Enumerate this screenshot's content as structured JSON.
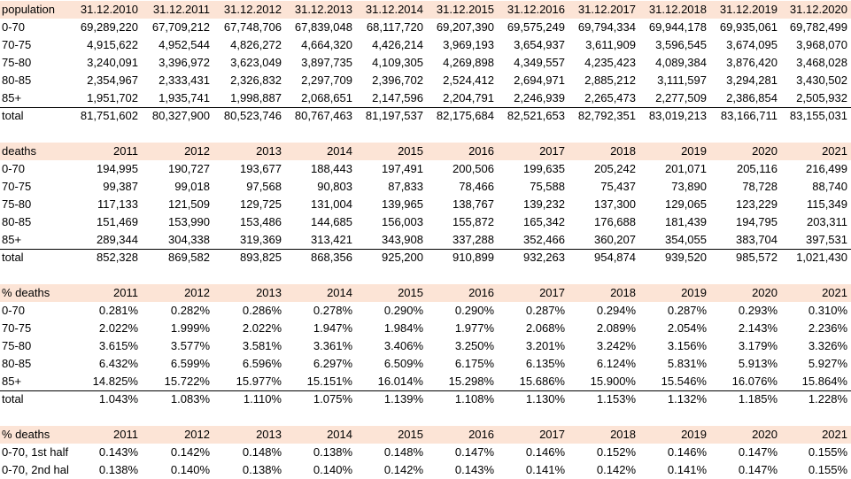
{
  "sections": [
    {
      "header": [
        "population",
        "31.12.2010",
        "31.12.2011",
        "31.12.2012",
        "31.12.2013",
        "31.12.2014",
        "31.12.2015",
        "31.12.2016",
        "31.12.2017",
        "31.12.2018",
        "31.12.2019",
        "31.12.2020"
      ],
      "rows": [
        [
          "0-70",
          "69,289,220",
          "67,709,212",
          "67,748,706",
          "67,839,048",
          "68,117,720",
          "69,207,390",
          "69,575,249",
          "69,794,334",
          "69,944,178",
          "69,935,061",
          "69,782,499"
        ],
        [
          "70-75",
          "4,915,622",
          "4,952,544",
          "4,826,272",
          "4,664,320",
          "4,426,214",
          "3,969,193",
          "3,654,937",
          "3,611,909",
          "3,596,545",
          "3,674,095",
          "3,968,070"
        ],
        [
          "75-80",
          "3,240,091",
          "3,396,972",
          "3,623,049",
          "3,897,735",
          "4,109,305",
          "4,269,898",
          "4,349,557",
          "4,235,423",
          "4,089,384",
          "3,876,420",
          "3,468,028"
        ],
        [
          "80-85",
          "2,354,967",
          "2,333,431",
          "2,326,832",
          "2,297,709",
          "2,396,702",
          "2,524,412",
          "2,694,971",
          "2,885,212",
          "3,111,597",
          "3,294,281",
          "3,430,502"
        ],
        [
          "85+",
          "1,951,702",
          "1,935,741",
          "1,998,887",
          "2,068,651",
          "2,147,596",
          "2,204,791",
          "2,246,939",
          "2,265,473",
          "2,277,509",
          "2,386,854",
          "2,505,932"
        ]
      ],
      "total": [
        "total",
        "81,751,602",
        "80,327,900",
        "80,523,746",
        "80,767,463",
        "81,197,537",
        "82,175,684",
        "82,521,653",
        "82,792,351",
        "83,019,213",
        "83,166,711",
        "83,155,031"
      ]
    },
    {
      "header": [
        "deaths",
        "2011",
        "2012",
        "2013",
        "2014",
        "2015",
        "2016",
        "2017",
        "2018",
        "2019",
        "2020",
        "2021"
      ],
      "rows": [
        [
          "0-70",
          "194,995",
          "190,727",
          "193,677",
          "188,443",
          "197,491",
          "200,506",
          "199,635",
          "205,242",
          "201,071",
          "205,116",
          "216,499"
        ],
        [
          "70-75",
          "99,387",
          "99,018",
          "97,568",
          "90,803",
          "87,833",
          "78,466",
          "75,588",
          "75,437",
          "73,890",
          "78,728",
          "88,740"
        ],
        [
          "75-80",
          "117,133",
          "121,509",
          "129,725",
          "131,004",
          "139,965",
          "138,767",
          "139,232",
          "137,300",
          "129,065",
          "123,229",
          "115,349"
        ],
        [
          "80-85",
          "151,469",
          "153,990",
          "153,486",
          "144,685",
          "156,003",
          "155,872",
          "165,342",
          "176,688",
          "181,439",
          "194,795",
          "203,311"
        ],
        [
          "85+",
          "289,344",
          "304,338",
          "319,369",
          "313,421",
          "343,908",
          "337,288",
          "352,466",
          "360,207",
          "354,055",
          "383,704",
          "397,531"
        ]
      ],
      "total": [
        "total",
        "852,328",
        "869,582",
        "893,825",
        "868,356",
        "925,200",
        "910,899",
        "932,263",
        "954,874",
        "939,520",
        "985,572",
        "1,021,430"
      ]
    },
    {
      "header": [
        "% deaths",
        "2011",
        "2012",
        "2013",
        "2014",
        "2015",
        "2016",
        "2017",
        "2018",
        "2019",
        "2020",
        "2021"
      ],
      "rows": [
        [
          "0-70",
          "0.281%",
          "0.282%",
          "0.286%",
          "0.278%",
          "0.290%",
          "0.290%",
          "0.287%",
          "0.294%",
          "0.287%",
          "0.293%",
          "0.310%"
        ],
        [
          "70-75",
          "2.022%",
          "1.999%",
          "2.022%",
          "1.947%",
          "1.984%",
          "1.977%",
          "2.068%",
          "2.089%",
          "2.054%",
          "2.143%",
          "2.236%"
        ],
        [
          "75-80",
          "3.615%",
          "3.577%",
          "3.581%",
          "3.361%",
          "3.406%",
          "3.250%",
          "3.201%",
          "3.242%",
          "3.156%",
          "3.179%",
          "3.326%"
        ],
        [
          "80-85",
          "6.432%",
          "6.599%",
          "6.596%",
          "6.297%",
          "6.509%",
          "6.175%",
          "6.135%",
          "6.124%",
          "5.831%",
          "5.913%",
          "5.927%"
        ],
        [
          "85+",
          "14.825%",
          "15.722%",
          "15.977%",
          "15.151%",
          "16.014%",
          "15.298%",
          "15.686%",
          "15.900%",
          "15.546%",
          "16.076%",
          "15.864%"
        ]
      ],
      "total": [
        "total",
        "1.043%",
        "1.083%",
        "1.110%",
        "1.075%",
        "1.139%",
        "1.108%",
        "1.130%",
        "1.153%",
        "1.132%",
        "1.185%",
        "1.228%"
      ]
    },
    {
      "header": [
        "% deaths",
        "2011",
        "2012",
        "2013",
        "2014",
        "2015",
        "2016",
        "2017",
        "2018",
        "2019",
        "2020",
        "2021"
      ],
      "rows": [
        [
          "0-70, 1st half",
          "0.143%",
          "0.142%",
          "0.148%",
          "0.138%",
          "0.148%",
          "0.147%",
          "0.146%",
          "0.152%",
          "0.146%",
          "0.147%",
          "0.155%"
        ],
        [
          "0-70, 2nd hal",
          "0.138%",
          "0.140%",
          "0.138%",
          "0.140%",
          "0.142%",
          "0.143%",
          "0.141%",
          "0.142%",
          "0.141%",
          "0.147%",
          "0.155%"
        ]
      ],
      "total": null
    }
  ],
  "colors": {
    "header_fill": "#fce4d6",
    "text": "#000000",
    "rule": "#000000"
  }
}
